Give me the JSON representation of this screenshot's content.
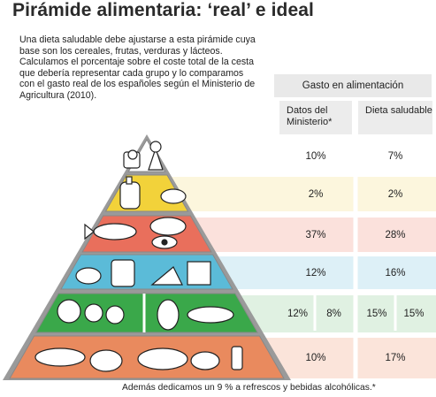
{
  "title": "Pirámide alimentaria: ‘real’ e ideal",
  "intro": "Una dieta saludable debe ajustarse a esta pirámide cuya base son los cereales, frutas, verduras y lácteos. Calculamos el porcentaje sobre el coste total de la cesta que debería representar cada grupo y lo comparamos con el gasto real de los españoles según el Ministerio de Agricultura (2010).",
  "table": {
    "header": "Gasto en alimentación",
    "col_ministerio": "Datos del Ministerio*",
    "col_dieta": "Dieta saludable"
  },
  "footer": "Además dedicamos un 9 % a refrescos y bebidas alcohólicas.*",
  "chart_data": {
    "type": "table",
    "columns": [
      "Datos del Ministerio*",
      "Dieta saludable"
    ],
    "rows": [
      {
        "ministerio": "10%",
        "dieta": "7%",
        "color": "#ffffff"
      },
      {
        "ministerio": "2%",
        "dieta": "2%",
        "color": "#f2d23a"
      },
      {
        "ministerio": "37%",
        "dieta": "28%",
        "color": "#e96f5c"
      },
      {
        "ministerio": "12%",
        "dieta": "16%",
        "color": "#5bbbd8"
      },
      {
        "ministerio": [
          "12%",
          "8%"
        ],
        "dieta": [
          "15%",
          "15%"
        ],
        "color": "#3aa84a"
      },
      {
        "ministerio": "10%",
        "dieta": "17%",
        "color": "#e98a5e"
      }
    ],
    "row_tint_colors": [
      "#ffffff",
      "#fcf6dd",
      "#fbe1dc",
      "#ddf0f7",
      "#e0f1e2",
      "#fbe4da"
    ]
  }
}
